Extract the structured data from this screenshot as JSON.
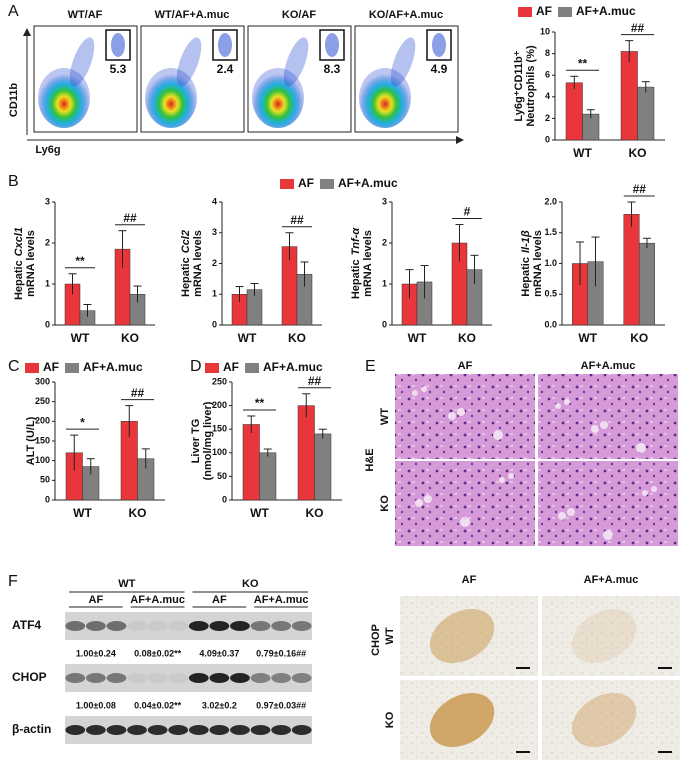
{
  "panels": [
    "A",
    "B",
    "C",
    "D",
    "E",
    "F"
  ],
  "flow": {
    "ylabel": "CD11b",
    "xlabel": "Ly6g",
    "plots": [
      {
        "title": "WT/AF",
        "value": 5.3
      },
      {
        "title": "WT/AF+A.muc",
        "value": 2.4
      },
      {
        "title": "KO/AF",
        "value": 8.3
      },
      {
        "title": "KO/AF+A.muc",
        "value": 4.9
      }
    ]
  },
  "he": {
    "columns": [
      "AF",
      "AF+A.muc"
    ],
    "rows": [
      "WT",
      "KO"
    ],
    "stain": "H&E"
  },
  "blot": {
    "groups": [
      "WT",
      "KO"
    ],
    "treatments": [
      "AF",
      "AF+A.muc",
      "AF",
      "AF+A.muc"
    ],
    "rows": [
      {
        "label": "ATF4",
        "quant": [
          "1.00±0.24",
          "0.08±0.02**",
          "4.09±0.37",
          "0.79±0.16##"
        ]
      },
      {
        "label": "CHOP",
        "quant": [
          "1.00±0.08",
          "0.04±0.02**",
          "3.02±0.2",
          "0.97±0.03##"
        ]
      },
      {
        "label": "β-actin"
      }
    ]
  },
  "ihc": {
    "columns": [
      "AF",
      "AF+A.muc"
    ],
    "rows": [
      "WT",
      "KO"
    ],
    "stain": "CHOP"
  },
  "chart_data": [
    {
      "type": "bar",
      "ylabel": [
        "Ly6g⁺CD11b⁺",
        "Neutrophils (%)"
      ],
      "categories": [
        "WT",
        "KO"
      ],
      "series": [
        {
          "name": "AF",
          "color": "#e8363a",
          "values": [
            5.3,
            8.2
          ],
          "errors": [
            0.6,
            1.0
          ]
        },
        {
          "name": "AF+A.muc",
          "color": "#808080",
          "values": [
            2.4,
            4.9
          ],
          "errors": [
            0.4,
            0.5
          ]
        }
      ],
      "ylim": [
        0,
        10
      ],
      "yticks": [
        0,
        2,
        4,
        6,
        8,
        10
      ],
      "significance": [
        "**",
        "##"
      ]
    },
    {
      "type": "bar",
      "ylabel": [
        "Hepatic",
        "Cxcl1",
        "mRNA levels"
      ],
      "categories": [
        "WT",
        "KO"
      ],
      "series": [
        {
          "name": "AF",
          "color": "#e8363a",
          "values": [
            1.0,
            1.85
          ],
          "errors": [
            0.25,
            0.45
          ]
        },
        {
          "name": "AF+A.muc",
          "color": "#808080",
          "values": [
            0.35,
            0.75
          ],
          "errors": [
            0.15,
            0.2
          ]
        }
      ],
      "ylim": [
        0,
        3
      ],
      "yticks": [
        0,
        1,
        2,
        3
      ],
      "significance": [
        "**",
        "##"
      ]
    },
    {
      "type": "bar",
      "ylabel": [
        "Hepatic",
        "Ccl2",
        "mRNA levels"
      ],
      "categories": [
        "WT",
        "KO"
      ],
      "series": [
        {
          "color": "#e8363a",
          "values": [
            1.0,
            2.55
          ],
          "errors": [
            0.25,
            0.45
          ]
        },
        {
          "color": "#808080",
          "values": [
            1.15,
            1.65
          ],
          "errors": [
            0.2,
            0.4
          ]
        }
      ],
      "ylim": [
        0,
        4
      ],
      "yticks": [
        0,
        1,
        2,
        3,
        4
      ],
      "significance": [
        null,
        "##"
      ]
    },
    {
      "type": "bar",
      "ylabel": [
        "Hepatic",
        "Tnf-α",
        "mRNA levels"
      ],
      "categories": [
        "WT",
        "KO"
      ],
      "series": [
        {
          "color": "#e8363a",
          "values": [
            1.0,
            2.0
          ],
          "errors": [
            0.35,
            0.45
          ]
        },
        {
          "color": "#808080",
          "values": [
            1.05,
            1.35
          ],
          "errors": [
            0.4,
            0.35
          ]
        }
      ],
      "ylim": [
        0,
        3
      ],
      "yticks": [
        0,
        1,
        2,
        3
      ],
      "significance": [
        null,
        "#"
      ]
    },
    {
      "type": "bar",
      "ylabel": [
        "Hepatic",
        "Il-1β",
        "mRNA levels"
      ],
      "categories": [
        "WT",
        "KO"
      ],
      "series": [
        {
          "color": "#e8363a",
          "values": [
            1.0,
            1.8
          ],
          "errors": [
            0.35,
            0.2
          ]
        },
        {
          "color": "#808080",
          "values": [
            1.03,
            1.33
          ],
          "errors": [
            0.4,
            0.08
          ]
        }
      ],
      "ylim": [
        0,
        2
      ],
      "yticks": [
        {
          "value": 0,
          "label": "0.0"
        },
        0.5,
        {
          "value": 1,
          "label": "1.0"
        },
        1.5,
        {
          "value": 2,
          "label": "2.0"
        }
      ],
      "significance": [
        null,
        "##"
      ]
    },
    {
      "type": "bar",
      "ylabel": [
        "ALT (U/L)"
      ],
      "categories": [
        "WT",
        "KO"
      ],
      "series": [
        {
          "name": "AF",
          "color": "#e8363a",
          "values": [
            120,
            200
          ],
          "errors": [
            45,
            40
          ]
        },
        {
          "name": "AF+A.muc",
          "color": "#808080",
          "values": [
            85,
            105
          ],
          "errors": [
            20,
            25
          ]
        }
      ],
      "ylim": [
        0,
        300
      ],
      "yticks": [
        0,
        50,
        100,
        150,
        200,
        250,
        300
      ],
      "significance": [
        "*",
        "##"
      ]
    },
    {
      "type": "bar",
      "ylabel": [
        "Liver TG",
        "(nmol/mg liver)"
      ],
      "categories": [
        "WT",
        "KO"
      ],
      "series": [
        {
          "name": "AF",
          "color": "#e8363a",
          "values": [
            160,
            200
          ],
          "errors": [
            18,
            25
          ]
        },
        {
          "name": "AF+A.muc",
          "color": "#808080",
          "values": [
            100,
            140
          ],
          "errors": [
            8,
            10
          ]
        }
      ],
      "ylim": [
        0,
        250
      ],
      "yticks": [
        0,
        50,
        100,
        150,
        200,
        250
      ],
      "significance": [
        "**",
        "##"
      ]
    }
  ]
}
